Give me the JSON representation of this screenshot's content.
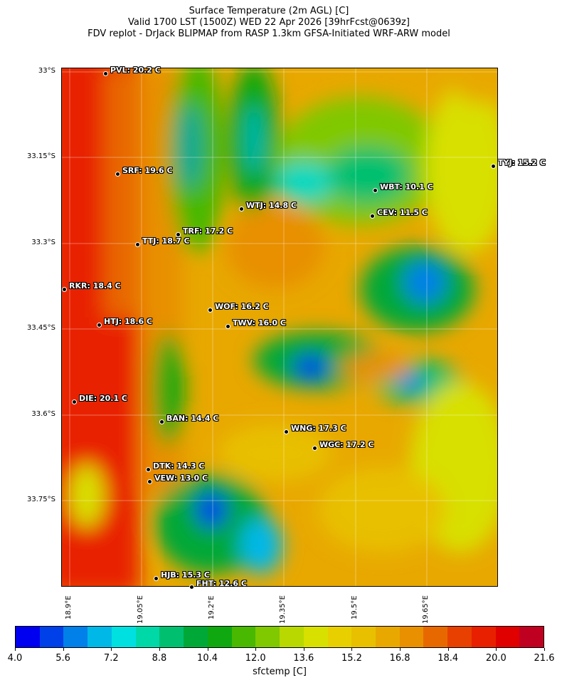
{
  "title": {
    "line1": "Surface Temperature (2m AGL) [C]",
    "line2": "Valid 1700 LST (1500Z) WED 22 Apr 2026 [39hrFcst@0639z]",
    "line3": "FDV replot - DrJack BLIPMAP from RASP 1.3km GFSA-Initiated WRF-ARW model"
  },
  "map": {
    "lat_labels": [
      "33°S",
      "33.15°S",
      "33.3°S",
      "33.45°S",
      "33.6°S",
      "33.75°S"
    ],
    "lon_labels": [
      "18.9°E",
      "19.05°E",
      "19.2°E",
      "19.35°E",
      "19.5°E",
      "19.65°E"
    ],
    "stations": [
      {
        "label": "PVL: 20.2 C"
      },
      {
        "label": "SRF: 19.6 C"
      },
      {
        "label": "WTJ: 14.8 C"
      },
      {
        "label": "TRF: 17.2 C"
      },
      {
        "label": "TTJ: 18.7 C"
      },
      {
        "label": "RKR: 18.4 C"
      },
      {
        "label": "WOF: 16.2 C"
      },
      {
        "label": "TWV: 16.0 C"
      },
      {
        "label": "HTJ: 18.6 C"
      },
      {
        "label": "WBT: 10.1 C"
      },
      {
        "label": "CEV: 11.5 C"
      },
      {
        "label": "TYJ: 15.2 C"
      },
      {
        "label": "DIE: 20.1 C"
      },
      {
        "label": "BAN: 14.4 C"
      },
      {
        "label": "WNG: 17.3 C"
      },
      {
        "label": "WGC: 17.2 C"
      },
      {
        "label": "DTK: 14.3 C"
      },
      {
        "label": "VEW: 13.0 C"
      },
      {
        "label": "HJB: 15.3 C"
      },
      {
        "label": "FHT: 12.6 C"
      }
    ]
  },
  "colorbar": {
    "label": "sfctemp [C]",
    "min": 4.0,
    "max": 21.6,
    "step": 0.8,
    "tick_labels": [
      "4.0",
      "5.6",
      "7.2",
      "8.8",
      "10.4",
      "12.0",
      "13.6",
      "15.2",
      "16.8",
      "18.4",
      "20.0",
      "21.6"
    ],
    "colors": [
      "#0000f0",
      "#0040e8",
      "#0080e8",
      "#00b8e8",
      "#00e0e0",
      "#00d8a8",
      "#00c070",
      "#00a838",
      "#10a810",
      "#48b800",
      "#80c800",
      "#b8d800",
      "#d8e000",
      "#e8d000",
      "#e8c000",
      "#e8a800",
      "#e89000",
      "#e86800",
      "#e84000",
      "#e82000",
      "#e00000",
      "#c00020"
    ]
  }
}
